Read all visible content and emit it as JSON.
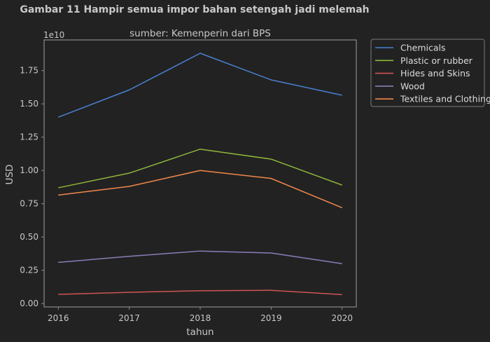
{
  "figure": {
    "suptitle": "Gambar 11 Hampir semua impor bahan setengah jadi melemah"
  },
  "chart_data": {
    "type": "line",
    "title": "sumber: Kemenperin dari BPS",
    "xlabel": "tahun",
    "ylabel": "USD",
    "y_offset_text": "1e10",
    "x": [
      2016,
      2017,
      2018,
      2019,
      2020
    ],
    "x_tick_labels": [
      "2016",
      "2017",
      "2018",
      "2019",
      "2020"
    ],
    "y_ticks": [
      0,
      0.25,
      0.5,
      0.75,
      1.0,
      1.25,
      1.5,
      1.75
    ],
    "y_tick_labels": [
      "0.00",
      "0.25",
      "0.50",
      "0.75",
      "1.00",
      "1.25",
      "1.50",
      "1.75"
    ],
    "ylim": [
      -0.025,
      1.98
    ],
    "xlim": [
      2015.8,
      2020.2
    ],
    "y_unit_multiplier": 10000000000.0,
    "legend_position": "outside-top-right",
    "grid": false,
    "series": [
      {
        "name": "Chemicals",
        "color": "#4a80d0",
        "values": [
          1.4,
          1.605,
          1.88,
          1.68,
          1.565
        ]
      },
      {
        "name": "Plastic or rubber",
        "color": "#8db63a",
        "values": [
          0.87,
          0.98,
          1.16,
          1.085,
          0.89
        ]
      },
      {
        "name": "Hides and Skins",
        "color": "#d05454",
        "values": [
          0.07,
          0.085,
          0.097,
          0.1,
          0.068
        ]
      },
      {
        "name": "Wood",
        "color": "#8c7cb8",
        "values": [
          0.31,
          0.355,
          0.395,
          0.38,
          0.3
        ]
      },
      {
        "name": "Textiles and Clothing",
        "color": "#f0884a",
        "values": [
          0.815,
          0.88,
          1.0,
          0.94,
          0.72
        ]
      }
    ]
  }
}
